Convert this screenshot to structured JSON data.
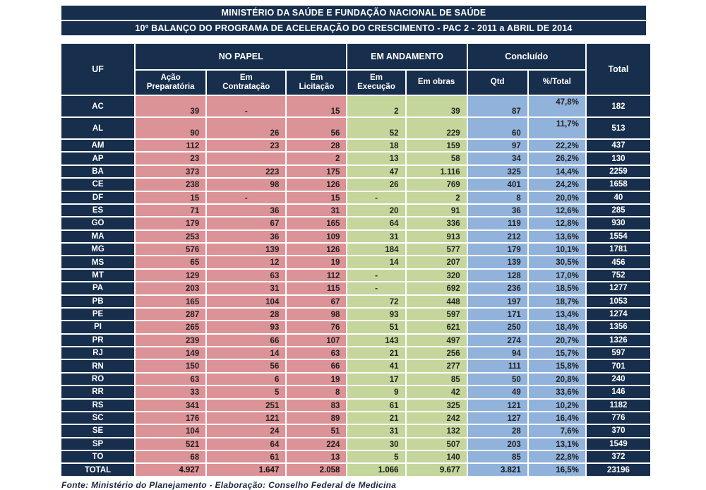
{
  "header": {
    "title1": "MINISTÉRIO DA SAÚDE E FUNDAÇÃO NACIONAL DE SAÚDE",
    "title2": "10º BALANÇO DO PROGRAMA DE ACELERAÇÃO DO CRESCIMENTO - PAC 2 - 2011 a ABRIL DE 2014"
  },
  "colors": {
    "navy": "#172E4C",
    "pink": "#DC9397",
    "green": "#C4D69C",
    "blue": "#91B3DB"
  },
  "table": {
    "uf_header": "UF",
    "total_header": "Total",
    "groups": [
      {
        "label": "NO PAPEL",
        "span": 3
      },
      {
        "label": "EM ANDAMENTO",
        "span": 2
      },
      {
        "label": "Concluído",
        "span": 2
      }
    ],
    "sub_headers": [
      "Ação\nPreparatória",
      "Em\nContratação",
      "Em\nLicitação",
      "Em\nExecução",
      "Em obras",
      "Qtd",
      "%/Total"
    ],
    "rows": [
      {
        "uf": "AC",
        "tall": true,
        "values": [
          "39",
          "-",
          "15",
          "2",
          "39",
          "87",
          "47,8%"
        ],
        "total": "182"
      },
      {
        "uf": "AL",
        "tall": true,
        "values": [
          "90",
          "26",
          "56",
          "52",
          "229",
          "60",
          "11,7%"
        ],
        "total": "513"
      },
      {
        "uf": "AM",
        "values": [
          "112",
          "23",
          "28",
          "18",
          "159",
          "97",
          "22,2%"
        ],
        "total": "437"
      },
      {
        "uf": "AP",
        "values": [
          "23",
          "",
          "2",
          "13",
          "58",
          "34",
          "26,2%"
        ],
        "total": "130"
      },
      {
        "uf": "BA",
        "values": [
          "373",
          "223",
          "175",
          "47",
          "1.116",
          "325",
          "14,4%"
        ],
        "total": "2259"
      },
      {
        "uf": "CE",
        "values": [
          "238",
          "98",
          "126",
          "26",
          "769",
          "401",
          "24,2%"
        ],
        "total": "1658"
      },
      {
        "uf": "DF",
        "values": [
          "15",
          "-",
          "15",
          "-",
          "2",
          "8",
          "20,0%"
        ],
        "total": "40"
      },
      {
        "uf": "ES",
        "values": [
          "71",
          "36",
          "31",
          "20",
          "91",
          "36",
          "12,6%"
        ],
        "total": "285"
      },
      {
        "uf": "GO",
        "values": [
          "179",
          "67",
          "165",
          "64",
          "336",
          "119",
          "12,8%"
        ],
        "total": "930"
      },
      {
        "uf": "MA",
        "values": [
          "253",
          "36",
          "109",
          "31",
          "913",
          "212",
          "13,6%"
        ],
        "total": "1554"
      },
      {
        "uf": "MG",
        "values": [
          "576",
          "139",
          "126",
          "184",
          "577",
          "179",
          "10,1%"
        ],
        "total": "1781"
      },
      {
        "uf": "MS",
        "values": [
          "65",
          "12",
          "19",
          "14",
          "207",
          "139",
          "30,5%"
        ],
        "total": "456"
      },
      {
        "uf": "MT",
        "values": [
          "129",
          "63",
          "112",
          "-",
          "320",
          "128",
          "17,0%"
        ],
        "total": "752"
      },
      {
        "uf": "PA",
        "values": [
          "203",
          "31",
          "115",
          "-",
          "692",
          "236",
          "18,5%"
        ],
        "total": "1277"
      },
      {
        "uf": "PB",
        "values": [
          "165",
          "104",
          "67",
          "72",
          "448",
          "197",
          "18,7%"
        ],
        "total": "1053"
      },
      {
        "uf": "PE",
        "values": [
          "287",
          "28",
          "98",
          "93",
          "597",
          "171",
          "13,4%"
        ],
        "total": "1274"
      },
      {
        "uf": "PI",
        "values": [
          "265",
          "93",
          "76",
          "51",
          "621",
          "250",
          "18,4%"
        ],
        "total": "1356"
      },
      {
        "uf": "PR",
        "values": [
          "239",
          "66",
          "107",
          "143",
          "497",
          "274",
          "20,7%"
        ],
        "total": "1326"
      },
      {
        "uf": "RJ",
        "values": [
          "149",
          "14",
          "63",
          "21",
          "256",
          "94",
          "15,7%"
        ],
        "total": "597"
      },
      {
        "uf": "RN",
        "values": [
          "150",
          "56",
          "66",
          "41",
          "277",
          "111",
          "15,8%"
        ],
        "total": "701"
      },
      {
        "uf": "RO",
        "values": [
          "63",
          "6",
          "19",
          "17",
          "85",
          "50",
          "20,8%"
        ],
        "total": "240"
      },
      {
        "uf": "RR",
        "values": [
          "33",
          "5",
          "8",
          "9",
          "42",
          "49",
          "33,6%"
        ],
        "total": "146"
      },
      {
        "uf": "RS",
        "values": [
          "341",
          "251",
          "83",
          "61",
          "325",
          "121",
          "10,2%"
        ],
        "total": "1182"
      },
      {
        "uf": "SC",
        "values": [
          "176",
          "121",
          "89",
          "21",
          "242",
          "127",
          "16,4%"
        ],
        "total": "776"
      },
      {
        "uf": "SE",
        "values": [
          "104",
          "24",
          "51",
          "31",
          "132",
          "28",
          "7,6%"
        ],
        "total": "370"
      },
      {
        "uf": "SP",
        "values": [
          "521",
          "64",
          "224",
          "30",
          "507",
          "203",
          "13,1%"
        ],
        "total": "1549"
      },
      {
        "uf": "TO",
        "values": [
          "68",
          "61",
          "13",
          "5",
          "140",
          "85",
          "22,8%"
        ],
        "total": "372"
      },
      {
        "uf": "TOTAL",
        "is_total": true,
        "values": [
          "4.927",
          "1.647",
          "2.058",
          "1.066",
          "9.677",
          "3.821",
          "16,5%"
        ],
        "total": "23196"
      }
    ]
  },
  "footer": {
    "source": "Fonte: Ministério do Planejamento - Elaboração: Conselho Federal de Medicina"
  }
}
